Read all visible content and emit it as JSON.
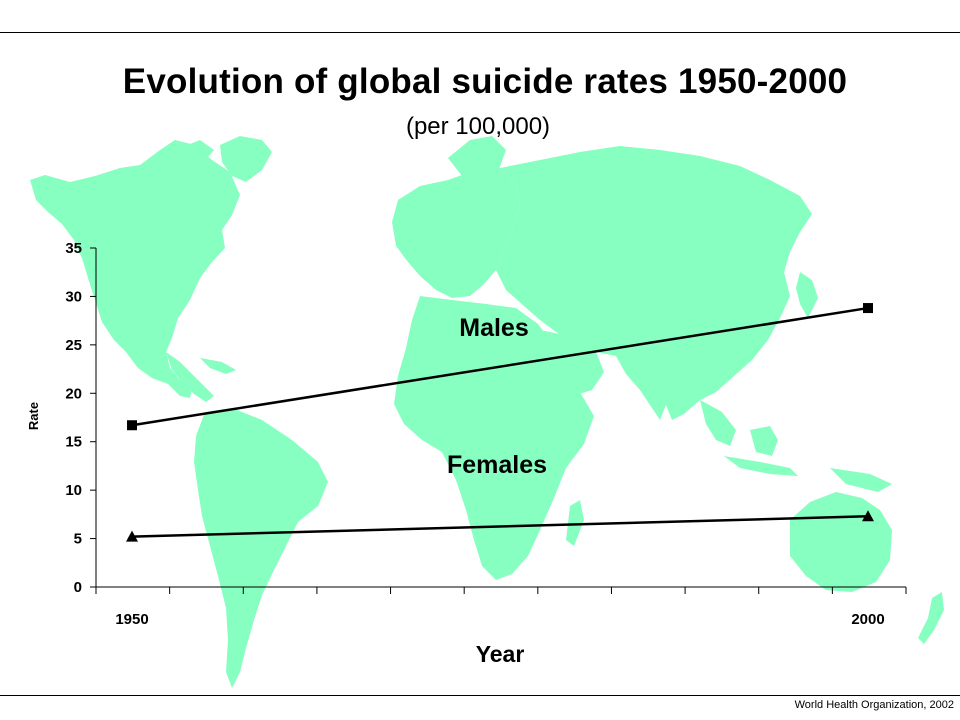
{
  "header": {
    "title": "Evolution of global suicide rates 1950-2000",
    "subtitle": "(per 100,000)"
  },
  "footer": {
    "credit": "World Health Organization, 2002"
  },
  "colors": {
    "map_fill": "#86FFC0",
    "line": "#000000"
  },
  "chart_data": {
    "type": "line",
    "title": "Evolution of global suicide rates 1950-2000",
    "subtitle": "(per 100,000)",
    "xlabel": "Year",
    "ylabel": "Rate",
    "x": [
      1950,
      2000
    ],
    "x_tick_labels": [
      "1950",
      "2000"
    ],
    "ylim": [
      0,
      35
    ],
    "y_ticks": [
      0,
      5,
      10,
      15,
      20,
      25,
      30,
      35
    ],
    "grid": false,
    "legend": "none",
    "background": "world map",
    "series": [
      {
        "name": "Males",
        "values": [
          16.7,
          28.8
        ],
        "marker": "square"
      },
      {
        "name": "Females",
        "values": [
          5.2,
          7.3
        ],
        "marker": "triangle"
      }
    ]
  }
}
